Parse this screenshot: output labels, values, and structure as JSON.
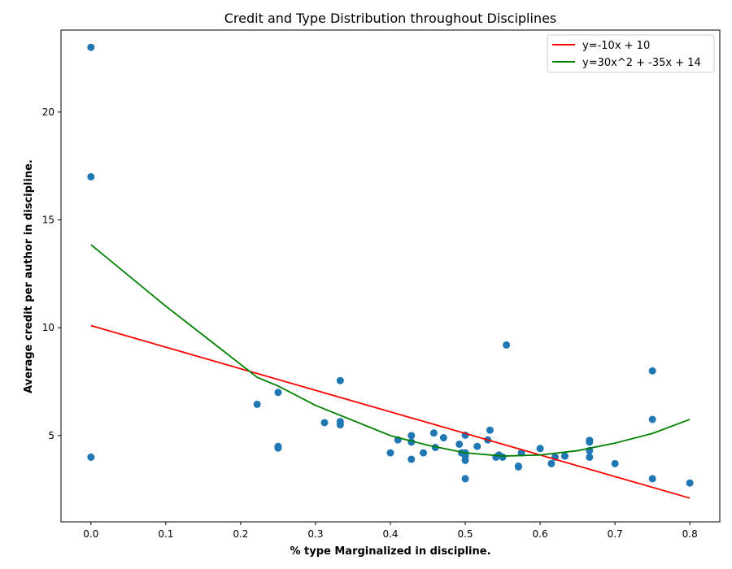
{
  "chart_data": {
    "type": "scatter",
    "title": "Credit and Type Distribution throughout Disciplines",
    "xlabel": "% type Marginalized in discipline.",
    "ylabel": "Average credit per author in discipline.",
    "xlim": [
      -0.04,
      0.84
    ],
    "ylim": [
      1.0,
      23.8
    ],
    "xticks": [
      0.0,
      0.1,
      0.2,
      0.3,
      0.4,
      0.5,
      0.6,
      0.7,
      0.8
    ],
    "xtick_labels": [
      "0.0",
      "0.1",
      "0.2",
      "0.3",
      "0.4",
      "0.5",
      "0.6",
      "0.7",
      "0.8"
    ],
    "yticks": [
      5,
      10,
      15,
      20
    ],
    "ytick_labels": [
      "5",
      "10",
      "15",
      "20"
    ],
    "grid": false,
    "legend_position": "top-right",
    "series": [
      {
        "kind": "scatter",
        "color": "#1f77b4",
        "points": [
          [
            0.0,
            23.0
          ],
          [
            0.0,
            17.0
          ],
          [
            0.0,
            4.0
          ],
          [
            0.222,
            6.45
          ],
          [
            0.25,
            7.0
          ],
          [
            0.25,
            4.5
          ],
          [
            0.25,
            4.42
          ],
          [
            0.312,
            5.6
          ],
          [
            0.333,
            7.55
          ],
          [
            0.333,
            5.65
          ],
          [
            0.333,
            5.5
          ],
          [
            0.4,
            4.2
          ],
          [
            0.41,
            4.8
          ],
          [
            0.428,
            5.0
          ],
          [
            0.428,
            4.7
          ],
          [
            0.428,
            3.9
          ],
          [
            0.444,
            4.2
          ],
          [
            0.458,
            5.12
          ],
          [
            0.46,
            4.45
          ],
          [
            0.471,
            4.9
          ],
          [
            0.492,
            4.6
          ],
          [
            0.495,
            4.2
          ],
          [
            0.5,
            5.02
          ],
          [
            0.5,
            4.2
          ],
          [
            0.5,
            4.05
          ],
          [
            0.5,
            3.85
          ],
          [
            0.5,
            3.0
          ],
          [
            0.516,
            4.5
          ],
          [
            0.53,
            4.8
          ],
          [
            0.533,
            5.25
          ],
          [
            0.541,
            4.0
          ],
          [
            0.545,
            4.1
          ],
          [
            0.55,
            4.0
          ],
          [
            0.555,
            9.2
          ],
          [
            0.571,
            3.58
          ],
          [
            0.571,
            3.55
          ],
          [
            0.575,
            4.2
          ],
          [
            0.6,
            4.4
          ],
          [
            0.615,
            3.7
          ],
          [
            0.62,
            4.0
          ],
          [
            0.633,
            4.05
          ],
          [
            0.666,
            4.78
          ],
          [
            0.666,
            4.7
          ],
          [
            0.666,
            4.3
          ],
          [
            0.666,
            4.0
          ],
          [
            0.7,
            3.7
          ],
          [
            0.75,
            8.0
          ],
          [
            0.75,
            5.75
          ],
          [
            0.75,
            3.0
          ],
          [
            0.8,
            2.8
          ]
        ]
      },
      {
        "kind": "line",
        "name": "y=-10x + 10",
        "color": "#ff0000",
        "x": [
          0.0,
          0.8
        ],
        "y": [
          10.1,
          2.1
        ]
      },
      {
        "kind": "line",
        "name": "y=30x^2 + -35x + 14",
        "color": "#008000",
        "x": [
          0.0,
          0.1,
          0.2,
          0.222,
          0.25,
          0.3,
          0.4,
          0.45,
          0.5,
          0.55,
          0.6,
          0.65,
          0.7,
          0.75,
          0.8
        ],
        "y": [
          13.85,
          11.0,
          8.3,
          7.7,
          7.3,
          6.4,
          5.0,
          4.55,
          4.2,
          4.05,
          4.1,
          4.3,
          4.65,
          5.1,
          5.75
        ]
      }
    ]
  }
}
